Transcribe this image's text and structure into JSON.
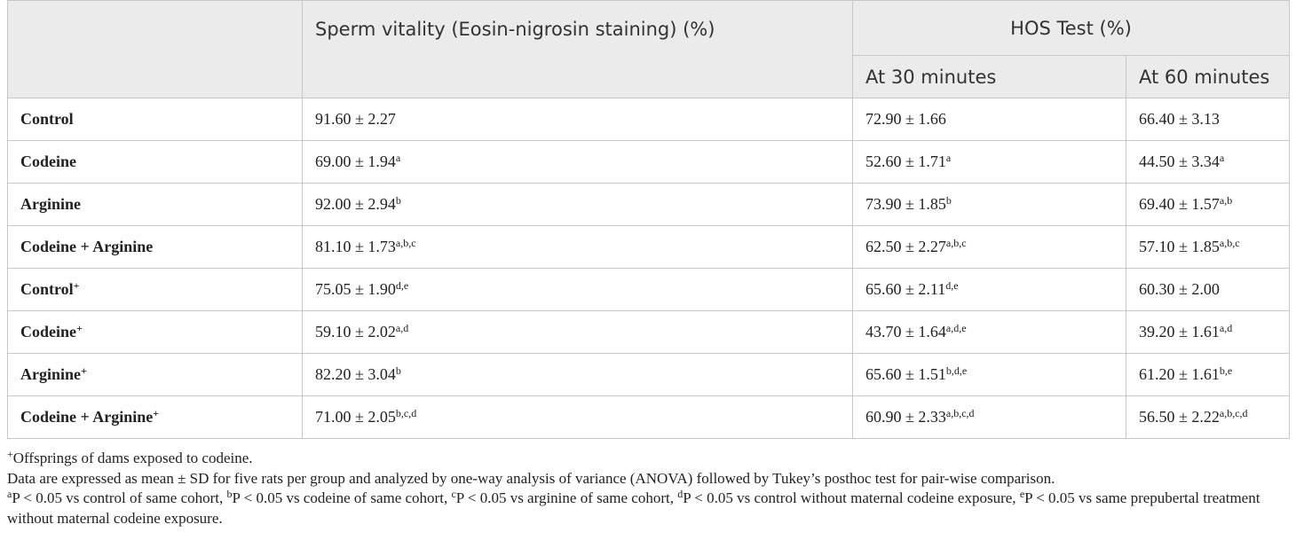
{
  "table": {
    "header": {
      "group1": "Sperm vitality (Eosin-nigrosin staining) (%)",
      "group2": "HOS Test (%)",
      "sub": [
        "At 30 minutes",
        "At 60 minutes"
      ]
    },
    "rows": [
      {
        "label": {
          "text": "Control"
        },
        "cells": [
          {
            "text": "91.60 ± 2.27"
          },
          {
            "text": "72.90 ± 1.66"
          },
          {
            "text": "66.40 ± 3.13"
          }
        ]
      },
      {
        "label": {
          "text": "Codeine"
        },
        "cells": [
          {
            "text": "69.00 ± 1.94",
            "sup": "a"
          },
          {
            "text": "52.60 ± 1.71",
            "sup": "a"
          },
          {
            "text": "44.50 ± 3.34",
            "sup": "a"
          }
        ]
      },
      {
        "label": {
          "text": "Arginine"
        },
        "cells": [
          {
            "text": "92.00 ± 2.94",
            "sup": "b"
          },
          {
            "text": "73.90 ± 1.85",
            "sup": "b"
          },
          {
            "text": "69.40 ± 1.57",
            "sup": "a,b"
          }
        ]
      },
      {
        "label": {
          "text": "Codeine + Arginine"
        },
        "cells": [
          {
            "text": "81.10 ± 1.73",
            "sup": "a,b,c"
          },
          {
            "text": "62.50 ± 2.27",
            "sup": "a,b,c"
          },
          {
            "text": "57.10 ± 1.85",
            "sup": "a,b,c"
          }
        ]
      },
      {
        "label": {
          "text": "Control",
          "sup": "+"
        },
        "cells": [
          {
            "text": "75.05 ± 1.90",
            "sup": "d,e"
          },
          {
            "text": "65.60 ± 2.11",
            "sup": "d,e"
          },
          {
            "text": "60.30 ± 2.00"
          }
        ]
      },
      {
        "label": {
          "text": "Codeine",
          "sup": "+"
        },
        "cells": [
          {
            "text": "59.10 ± 2.02",
            "sup": "a,d"
          },
          {
            "text": "43.70 ± 1.64",
            "sup": "a,d,e"
          },
          {
            "text": "39.20 ± 1.61",
            "sup": "a,d"
          }
        ]
      },
      {
        "label": {
          "text": "Arginine",
          "sup": "+"
        },
        "cells": [
          {
            "text": "82.20 ± 3.04",
            "sup": "b"
          },
          {
            "text": "65.60 ± 1.51",
            "sup": "b,d,e"
          },
          {
            "text": "61.20 ± 1.61",
            "sup": "b,e"
          }
        ]
      },
      {
        "label": {
          "text": "Codeine + Arginine",
          "sup": "+"
        },
        "cells": [
          {
            "text": "71.00 ± 2.05",
            "sup": "b,c,d"
          },
          {
            "text": "60.90 ± 2.33",
            "sup": "a,b,c,d"
          },
          {
            "text": "56.50 ± 2.22",
            "sup": "a,b,c,d"
          }
        ]
      }
    ]
  },
  "footnotes": [
    [
      {
        "sup": "+"
      },
      {
        "text": "Offsprings of dams exposed to codeine."
      }
    ],
    [
      {
        "text": "Data are expressed as mean ± SD for five rats per group and analyzed by one-way analysis of variance (ANOVA) followed by Tukey’s posthoc test for pair-wise comparison."
      }
    ],
    [
      {
        "sup": "a"
      },
      {
        "text": "P < 0.05 vs control of same cohort, "
      },
      {
        "sup": "b"
      },
      {
        "text": "P < 0.05 vs codeine of same cohort, "
      },
      {
        "sup": "c"
      },
      {
        "text": "P < 0.05 vs arginine of same cohort, "
      },
      {
        "sup": "d"
      },
      {
        "text": "P < 0.05 vs control without maternal codeine exposure, "
      },
      {
        "sup": "e"
      },
      {
        "text": "P < 0.05 vs same prepubertal treatment without maternal codeine exposure."
      }
    ]
  ]
}
